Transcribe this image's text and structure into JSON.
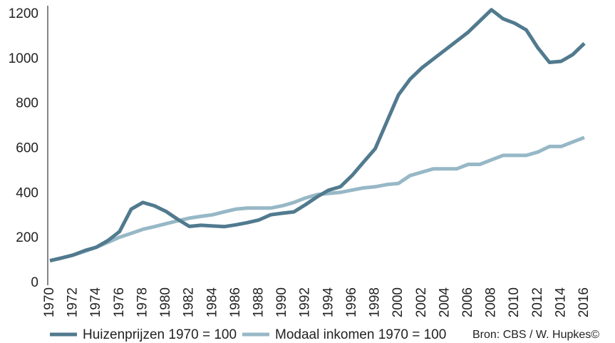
{
  "chart_data": {
    "type": "line",
    "x": [
      1970,
      1971,
      1972,
      1973,
      1974,
      1975,
      1976,
      1977,
      1978,
      1979,
      1980,
      1981,
      1982,
      1983,
      1984,
      1985,
      1986,
      1987,
      1988,
      1989,
      1990,
      1991,
      1992,
      1993,
      1994,
      1995,
      1996,
      1997,
      1998,
      1999,
      2000,
      2001,
      2002,
      2003,
      2004,
      2005,
      2006,
      2007,
      2008,
      2009,
      2010,
      2011,
      2012,
      2013,
      2014,
      2015,
      2016
    ],
    "series": [
      {
        "name": "Huizenprijzen 1970 = 100",
        "color": "#517a8e",
        "values": [
          100,
          112,
          125,
          145,
          160,
          190,
          230,
          330,
          360,
          345,
          320,
          285,
          253,
          258,
          255,
          252,
          260,
          270,
          282,
          305,
          312,
          318,
          350,
          385,
          415,
          430,
          480,
          540,
          600,
          720,
          840,
          910,
          960,
          1000,
          1040,
          1080,
          1120,
          1170,
          1220,
          1180,
          1160,
          1130,
          1050,
          985,
          990,
          1020,
          1070
        ]
      },
      {
        "name": "Modaal inkomen 1970 =  100",
        "color": "#97b8c6",
        "values": [
          100,
          112,
          125,
          142,
          160,
          182,
          205,
          222,
          240,
          252,
          265,
          278,
          290,
          298,
          305,
          318,
          330,
          335,
          335,
          335,
          345,
          360,
          380,
          395,
          400,
          405,
          415,
          425,
          430,
          440,
          445,
          480,
          495,
          510,
          510,
          510,
          530,
          530,
          550,
          570,
          570,
          570,
          585,
          610,
          610,
          630,
          650
        ]
      }
    ],
    "xlim": [
      1970,
      2016
    ],
    "xticks": [
      1970,
      1972,
      1974,
      1976,
      1978,
      1980,
      1982,
      1984,
      1986,
      1988,
      1990,
      1992,
      1994,
      1996,
      1998,
      2000,
      2002,
      2004,
      2006,
      2008,
      2010,
      2012,
      2014,
      2016
    ],
    "ylim": [
      0,
      1200
    ],
    "yticks": [
      0,
      200,
      400,
      600,
      800,
      1000,
      1200
    ],
    "source": "Bron: CBS / W. Hupkes©"
  }
}
